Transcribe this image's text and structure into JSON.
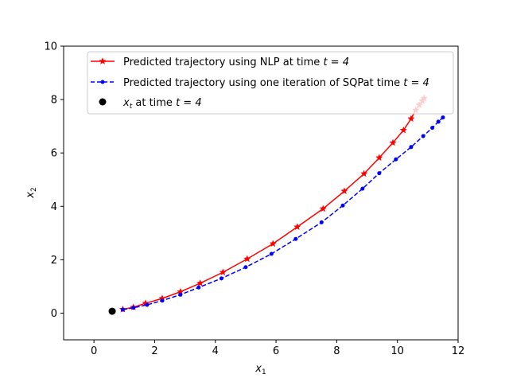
{
  "chart_data": {
    "type": "line",
    "xlabel": "x",
    "xlabel_sub": "1",
    "ylabel": "x",
    "ylabel_sub": "2",
    "xlim": [
      -1,
      12
    ],
    "ylim": [
      -1,
      10
    ],
    "xticks": [
      0,
      2,
      4,
      6,
      8,
      10,
      12
    ],
    "yticks": [
      0,
      2,
      4,
      6,
      8,
      10
    ],
    "grid": false,
    "legend_placement": "top-right",
    "series": [
      {
        "name": "Predicted trajectory using NLP at time t = 4",
        "legend_text": "Predicted trajectory using NLP at time ",
        "legend_math": "t = 4",
        "color": "#ff0000",
        "linestyle": "solid",
        "marker": "star",
        "x": [
          0.95,
          1.3,
          1.7,
          2.25,
          2.85,
          3.5,
          4.25,
          5.05,
          5.9,
          6.7,
          7.55,
          8.25,
          8.9,
          9.4,
          9.85,
          10.2,
          10.45,
          10.6,
          10.72,
          10.82,
          10.88
        ],
        "y": [
          0.14,
          0.22,
          0.37,
          0.55,
          0.8,
          1.12,
          1.53,
          2.03,
          2.6,
          3.23,
          3.91,
          4.57,
          5.22,
          5.82,
          6.38,
          6.85,
          7.28,
          7.6,
          7.8,
          7.95,
          8.05
        ]
      },
      {
        "name": "Predicted trajectory using one iteration of SQPat time t = 4",
        "legend_text": "Predicted trajectory using one iteration of SQPat time ",
        "legend_math": "t = 4",
        "color": "#0000ff",
        "linestyle": "dashed",
        "marker": "dot",
        "x": [
          0.95,
          1.3,
          1.75,
          2.25,
          2.85,
          3.45,
          4.2,
          5.0,
          5.85,
          6.65,
          7.5,
          8.2,
          8.85,
          9.4,
          9.95,
          10.45,
          10.85,
          11.15,
          11.35,
          11.5
        ],
        "y": [
          0.13,
          0.2,
          0.31,
          0.47,
          0.69,
          0.96,
          1.3,
          1.72,
          2.22,
          2.78,
          3.4,
          4.03,
          4.66,
          5.24,
          5.76,
          6.22,
          6.63,
          6.94,
          7.17,
          7.33
        ]
      },
      {
        "name": "x_t at time t = 4",
        "legend_math_var": "x",
        "legend_math_sub": "t",
        "legend_text": " at time ",
        "legend_math": "t = 4",
        "color": "#000000",
        "linestyle": "none",
        "marker": "circle",
        "x": [
          0.6
        ],
        "y": [
          0.07
        ]
      }
    ]
  }
}
